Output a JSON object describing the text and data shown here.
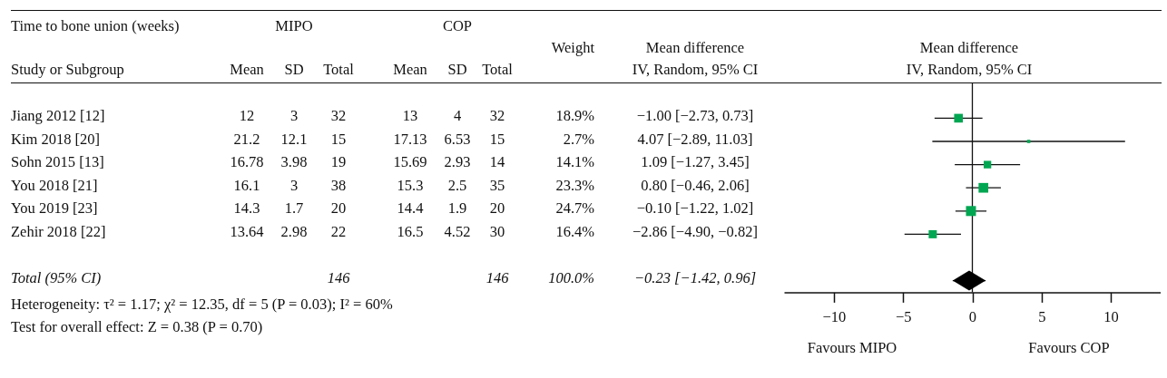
{
  "chart_data": [
    {
      "type": "other",
      "title": "Time to bone union (weeks)",
      "ylabel": "Study or Subgroup",
      "categories": [
        "Mean",
        "SD",
        "Total",
        "Mean",
        "SD",
        "Total",
        "Weight",
        "Mean difference"
      ],
      "y_categories": [
        "Jiang 2012 [12]",
        "Kim 2018 [20]",
        "Sohn 2015 [13]",
        "You 2018 [21]",
        "You 2019 [23]",
        "Zehir 2018 [22]",
        "Total (95% CI)"
      ],
      "cell_labels": [
        [
          "12",
          "3",
          "32",
          "13",
          "4",
          "32",
          "18.9%",
          "−1.00 [−2.73, 0.73]"
        ],
        [
          "21.2",
          "12.1",
          "15",
          "17.13",
          "6.53",
          "15",
          "2.7%",
          "4.07 [−2.89, 11.03]"
        ],
        [
          "16.78",
          "3.98",
          "19",
          "15.69",
          "2.93",
          "14",
          "14.1%",
          "1.09 [−1.27, 3.45]"
        ],
        [
          "16.1",
          "3",
          "38",
          "15.3",
          "2.5",
          "35",
          "23.3%",
          "0.80 [−0.46, 2.06]"
        ],
        [
          "14.3",
          "1.7",
          "20",
          "14.4",
          "1.9",
          "20",
          "24.7%",
          "−0.10 [−1.22, 1.02]"
        ],
        [
          "13.64",
          "2.98",
          "22",
          "16.5",
          "4.52",
          "30",
          "16.4%",
          "−2.86 [−4.90, −0.82]"
        ],
        [
          null,
          null,
          "146",
          null,
          null,
          "146",
          "100.0%",
          "−0.23 [−1.42, 0.96]"
        ]
      ],
      "annotations": [
        "MIPO",
        "COP",
        "IV, Random, 95% CI",
        "Heterogeneity: τ² = 1.17; χ² = 12.35, df = 5 (P = 0.03); I² = 60%",
        "Test for overall effect: Z = 0.38 (P = 0.70)"
      ]
    },
    {
      "type": "scatter",
      "title": "Mean difference",
      "subtitle": "IV, Random, 95% CI",
      "categories": [
        null,
        null,
        null,
        null,
        null,
        null,
        null,
        null,
        null
      ],
      "series": [
        {
          "type": "bubble",
          "marker": "square",
          "color": "#00a651",
          "values": [
            null,
            -1.0,
            4.07,
            1.09,
            0.8,
            -0.1,
            -2.86,
            null,
            null
          ],
          "errors": [
            null,
            [
              -2.73,
              0.73
            ],
            [
              -2.89,
              11.03
            ],
            [
              -1.27,
              3.45
            ],
            [
              -0.46,
              2.06
            ],
            [
              -1.22,
              1.02
            ],
            [
              -4.9,
              -0.82
            ],
            null,
            null
          ],
          "sizes": [
            null,
            0.765,
            0.109,
            0.571,
            0.943,
            1,
            0.664,
            null,
            null
          ]
        },
        {
          "type": "scatter",
          "marker": "diamond",
          "color": "#000000",
          "values": [
            null,
            null,
            null,
            null,
            null,
            null,
            null,
            null,
            -0.23
          ],
          "errors": [
            null,
            null,
            null,
            null,
            null,
            null,
            null,
            null,
            [
              -1.42,
              0.96
            ]
          ]
        }
      ],
      "orientation": "horizontal",
      "xlim": [
        -13.6,
        13.6
      ],
      "xticks": [
        {
          "value": -10,
          "label": "−10"
        },
        {
          "value": -5,
          "label": "−5"
        },
        0,
        5,
        10
      ],
      "ref_lines": [
        {
          "axis": "x",
          "value": 0
        }
      ],
      "annotations": [
        "Favours MIPO",
        "Favours COP"
      ],
      "tick_labels": "x"
    }
  ]
}
